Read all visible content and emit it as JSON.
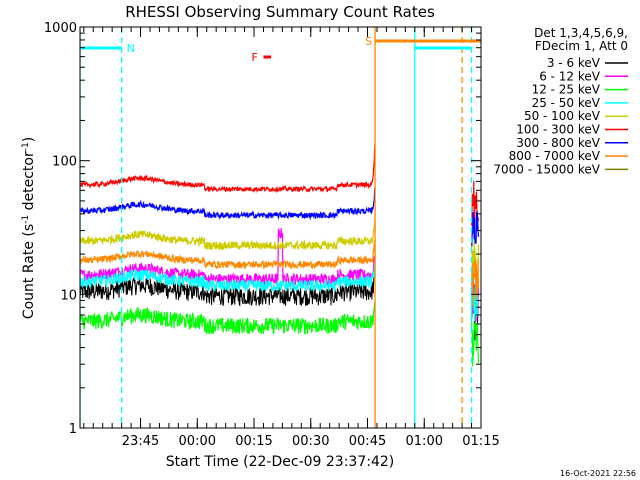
{
  "chart_data": {
    "type": "line",
    "title": "RHESSI Observing Summary Count Rates",
    "xlabel": "Start Time (22-Dec-09 23:37:42)",
    "ylabel_parts": [
      "Count Rate (s",
      "-1",
      " detector",
      "-1",
      ")"
    ],
    "yscale": "log",
    "ylim": [
      1,
      1000
    ],
    "y_ticks": [
      {
        "value": 1,
        "label": "1"
      },
      {
        "value": 10,
        "label": "10"
      },
      {
        "value": 100,
        "label": "100"
      },
      {
        "value": 1000,
        "label": "1000"
      }
    ],
    "xlim_min": [
      -8,
      98
    ],
    "x_ticks": [
      {
        "min": 8,
        "label": "23:45"
      },
      {
        "min": 23,
        "label": "00:00"
      },
      {
        "min": 38,
        "label": "00:15"
      },
      {
        "min": 53,
        "label": "00:30"
      },
      {
        "min": 68,
        "label": "00:45"
      },
      {
        "min": 83,
        "label": "01:00"
      },
      {
        "min": 98,
        "label": "01:15"
      }
    ],
    "legend_header": [
      "Det 1,3,4,5,6,9,",
      "FDecim 1, Att 0"
    ],
    "series": [
      {
        "name": "3 - 6 keV",
        "color": "#000000",
        "base": 10.5,
        "noise": 0.08,
        "dip": 0.88
      },
      {
        "name": "6 - 12 keV",
        "color": "#ff00ff",
        "base": 14,
        "noise": 0.05,
        "dip": 0.9
      },
      {
        "name": "12 - 25 keV",
        "color": "#00ff00",
        "base": 6.3,
        "noise": 0.07,
        "dip": 0.88
      },
      {
        "name": "25 - 50 keV",
        "color": "#00ffff",
        "base": 12.5,
        "noise": 0.05,
        "dip": 0.9
      },
      {
        "name": "50 - 100 keV",
        "color": "#cccc00",
        "base": 25,
        "noise": 0.035,
        "dip": 0.92
      },
      {
        "name": "100 - 300 keV",
        "color": "#ff0000",
        "base": 66,
        "noise": 0.02,
        "dip": 0.88
      },
      {
        "name": "300 - 800 keV",
        "color": "#0000ff",
        "base": 42,
        "noise": 0.025,
        "dip": 0.88
      },
      {
        "name": "800 - 7000 keV",
        "color": "#ff8800",
        "base": 18,
        "noise": 0.03,
        "dip": 0.9
      },
      {
        "name": "7000 - 15000 keV",
        "color": "#808000",
        "base": 0,
        "noise": 0,
        "dip": 1
      }
    ],
    "data_segments": [
      [
        -8,
        70
      ],
      [
        95.5,
        97.3
      ]
    ],
    "flags": [
      {
        "label": "N",
        "color": "#00ffff",
        "start_min": -8,
        "end_min": 3,
        "level": "high"
      },
      {
        "label": "N",
        "color": "#00ffff",
        "start_min": 80.5,
        "end_min": 95.5,
        "level": "high"
      },
      {
        "label": "S",
        "color": "#ff8800",
        "start_min": 70,
        "end_min": 98,
        "level": "top"
      },
      {
        "label": "F",
        "color": "#ff0000",
        "start_min": 40.5,
        "end_min": 42.5,
        "level": "mid"
      }
    ],
    "vlines": [
      {
        "min": -8,
        "color": "#00ffff",
        "style": "solid"
      },
      {
        "min": 3,
        "color": "#00ffff",
        "style": "dashed"
      },
      {
        "min": 70,
        "color": "#ff8800",
        "style": "solid"
      },
      {
        "min": 80.5,
        "color": "#00ffff",
        "style": "solid"
      },
      {
        "min": 93,
        "color": "#ff8800",
        "style": "dashed"
      },
      {
        "min": 95.5,
        "color": "#00ffff",
        "style": "dashed"
      }
    ],
    "timestamp": "16-Oct-2021 22:56"
  }
}
